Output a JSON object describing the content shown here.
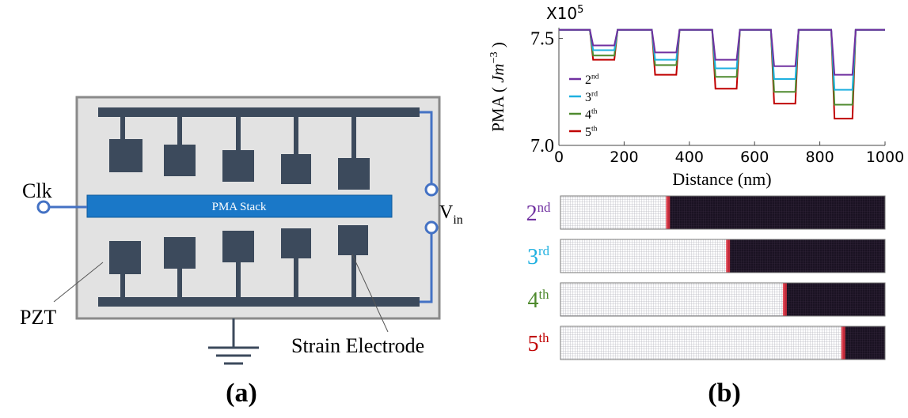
{
  "panel_a": {
    "clk": "Clk",
    "stack": "PMA Stack",
    "vin": {
      "main": "V",
      "sub": "in"
    },
    "pzt": "PZT",
    "electrode": "Strain Electrode",
    "label": "(a)"
  },
  "chart_data": {
    "type": "line",
    "multiplier": {
      "base": "X10",
      "exp": "5"
    },
    "y_label": {
      "text": "PMA ( ",
      "unit": "Jm",
      "exp": "−3",
      "close": " )"
    },
    "x_label": "Distance (nm)",
    "x": [
      0,
      95,
      105,
      170,
      180,
      285,
      295,
      360,
      370,
      470,
      480,
      545,
      555,
      650,
      660,
      725,
      735,
      835,
      845,
      900,
      910,
      1000
    ],
    "series": [
      {
        "name": "2nd",
        "color": "#7030a0",
        "values": [
          7.54,
          7.54,
          7.467,
          7.467,
          7.54,
          7.54,
          7.434,
          7.434,
          7.54,
          7.54,
          7.4,
          7.4,
          7.54,
          7.54,
          7.37,
          7.37,
          7.54,
          7.54,
          7.33,
          7.33,
          7.54,
          7.54
        ]
      },
      {
        "name": "3rd",
        "color": "#1fb0e0",
        "values": [
          7.54,
          7.54,
          7.445,
          7.445,
          7.54,
          7.54,
          7.4,
          7.4,
          7.54,
          7.54,
          7.36,
          7.36,
          7.54,
          7.54,
          7.31,
          7.31,
          7.54,
          7.54,
          7.26,
          7.26,
          7.54,
          7.54
        ]
      },
      {
        "name": "4th",
        "color": "#4e8a2e",
        "values": [
          7.54,
          7.54,
          7.42,
          7.42,
          7.54,
          7.54,
          7.375,
          7.375,
          7.54,
          7.54,
          7.32,
          7.32,
          7.54,
          7.54,
          7.25,
          7.25,
          7.54,
          7.54,
          7.19,
          7.19,
          7.54,
          7.54
        ]
      },
      {
        "name": "5th",
        "color": "#c00000",
        "values": [
          7.54,
          7.54,
          7.4,
          7.4,
          7.54,
          7.54,
          7.33,
          7.33,
          7.54,
          7.54,
          7.265,
          7.265,
          7.54,
          7.54,
          7.195,
          7.195,
          7.54,
          7.54,
          7.125,
          7.125,
          7.54,
          7.54
        ]
      }
    ],
    "xlim": [
      0,
      1000
    ],
    "xticks": [
      0,
      200,
      400,
      600,
      800,
      1000
    ],
    "ylim": [
      7.0,
      7.55
    ],
    "yticks": [
      {
        "value": 7.0,
        "label": "7.0"
      },
      {
        "value": 7.5,
        "label": "7.5"
      }
    ],
    "grid": false,
    "legend": "left"
  },
  "panel_b": {
    "wall_positions": [
      0.33,
      0.515,
      0.69,
      0.87
    ],
    "label": "(b)"
  }
}
